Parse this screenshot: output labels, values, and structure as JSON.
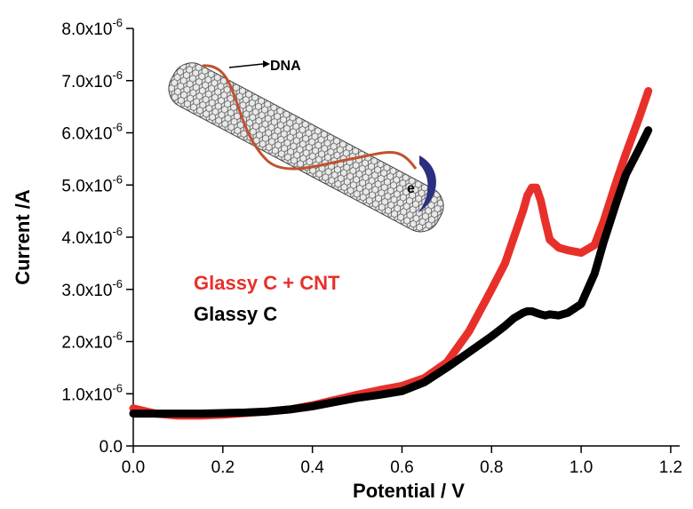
{
  "chart_data": {
    "type": "line",
    "x_label": "Potential / V",
    "y_label": "Current /A",
    "xlim": [
      0,
      1.22
    ],
    "ylim": [
      0,
      8e-06
    ],
    "xticks": [
      {
        "value": 0,
        "label": "0.0"
      },
      0.2,
      0.4,
      0.6,
      0.8,
      {
        "value": 1,
        "label": "1.0"
      },
      1.2
    ],
    "yticks": [
      {
        "value": 0,
        "label": "0.0"
      },
      {
        "value": 1e-06,
        "label": "1.0x10",
        "exponent": "-6"
      },
      {
        "value": 2e-06,
        "label": "2.0x10",
        "exponent": "-6"
      },
      {
        "value": 3e-06,
        "label": "3.0x10",
        "exponent": "-6"
      },
      {
        "value": 4e-06,
        "label": "4.0x10",
        "exponent": "-6"
      },
      {
        "value": 5e-06,
        "label": "5.0x10",
        "exponent": "-6"
      },
      {
        "value": 6e-06,
        "label": "6.0x10",
        "exponent": "-6"
      },
      {
        "value": 7e-06,
        "label": "7.0x10",
        "exponent": "-6"
      },
      {
        "value": 8e-06,
        "label": "8.0x10",
        "exponent": "-6"
      }
    ],
    "x": [
      0,
      0.05,
      0.1,
      0.15,
      0.2,
      0.25,
      0.3,
      0.35,
      0.4,
      0.45,
      0.5,
      0.55,
      0.6,
      0.65,
      0.7,
      0.75,
      0.8,
      0.83,
      0.85,
      0.87,
      0.88,
      0.89,
      0.9,
      0.91,
      0.92,
      0.93,
      0.95,
      0.97,
      1.0,
      1.03,
      1.05,
      1.08,
      1.1,
      1.13,
      1.15
    ],
    "series": [
      {
        "name": "Glassy C + CNT",
        "color": "#e8302a",
        "values": [
          7.2e-07,
          6.2e-07,
          5.8e-07,
          5.8e-07,
          6e-07,
          6.3e-07,
          6.6e-07,
          7e-07,
          7.8e-07,
          8.8e-07,
          9.8e-07,
          1.07e-06,
          1.15e-06,
          1.3e-06,
          1.6e-06,
          2.2e-06,
          3e-06,
          3.5e-06,
          4e-06,
          4.5e-06,
          4.8e-06,
          4.95e-06,
          4.95e-06,
          4.7e-06,
          4.3e-06,
          3.95e-06,
          3.8e-06,
          3.75e-06,
          3.7e-06,
          3.85e-06,
          4.3e-06,
          5.1e-06,
          5.6e-06,
          6.3e-06,
          6.8e-06
        ]
      },
      {
        "name": "Glassy C",
        "color": "#000000",
        "values": [
          6.2e-07,
          6.2e-07,
          6.2e-07,
          6.2e-07,
          6.3e-07,
          6.4e-07,
          6.6e-07,
          7e-07,
          7.6e-07,
          8.4e-07,
          9.2e-07,
          9.8e-07,
          1.05e-06,
          1.22e-06,
          1.5e-06,
          1.8e-06,
          2.1e-06,
          2.3e-06,
          2.45e-06,
          2.55e-06,
          2.58e-06,
          2.58e-06,
          2.55e-06,
          2.52e-06,
          2.5e-06,
          2.52e-06,
          2.5e-06,
          2.55e-06,
          2.72e-06,
          3.3e-06,
          3.9e-06,
          4.7e-06,
          5.2e-06,
          5.7e-06,
          6.05e-06
        ]
      }
    ],
    "annotations": [
      "DNA",
      "e"
    ]
  }
}
